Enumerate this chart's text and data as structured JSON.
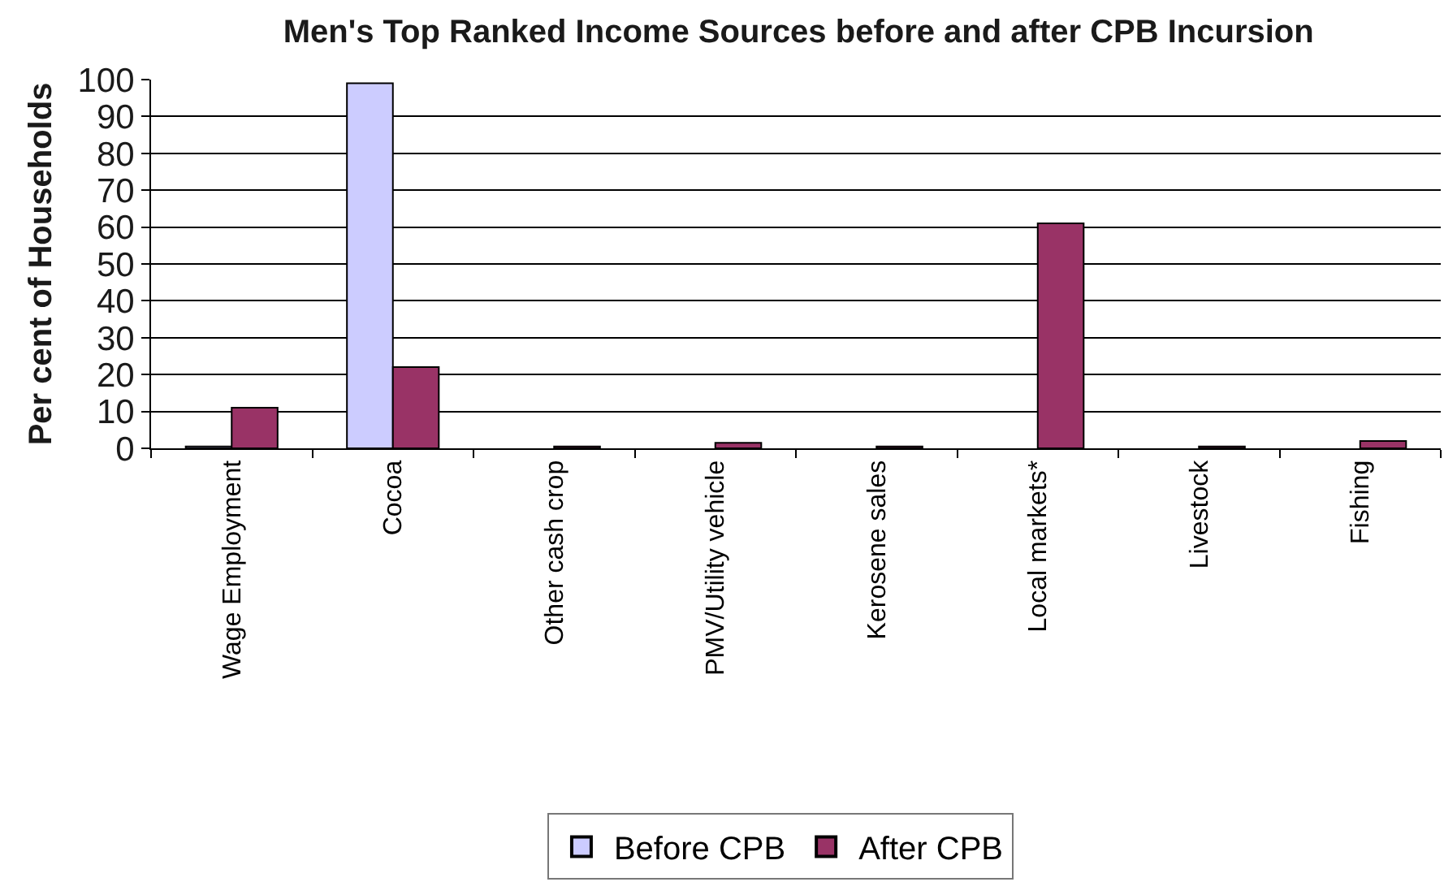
{
  "chart_data": {
    "type": "bar",
    "title": "Men's Top Ranked Income Sources before and after CPB Incursion",
    "ylabel": "Per cent of Households",
    "categories": [
      "Wage Employment",
      "Cocoa",
      "Other cash crop",
      "PMV/Utility vehicle",
      "Kerosene sales",
      "Local markets*",
      "Livestock",
      "Fishing"
    ],
    "series": [
      {
        "name": "Before CPB",
        "color": "#ccccff",
        "values": [
          0.5,
          99,
          0,
          0,
          0,
          0,
          0,
          0
        ]
      },
      {
        "name": "After CPB",
        "color": "#993366",
        "values": [
          11,
          22,
          0.5,
          1.5,
          0.5,
          61,
          0.5,
          2
        ]
      }
    ],
    "ylim": [
      0,
      100
    ],
    "yticks": [
      0,
      10,
      20,
      30,
      40,
      50,
      60,
      70,
      80,
      90,
      100
    ],
    "grid": "y",
    "legend": "bottom"
  }
}
